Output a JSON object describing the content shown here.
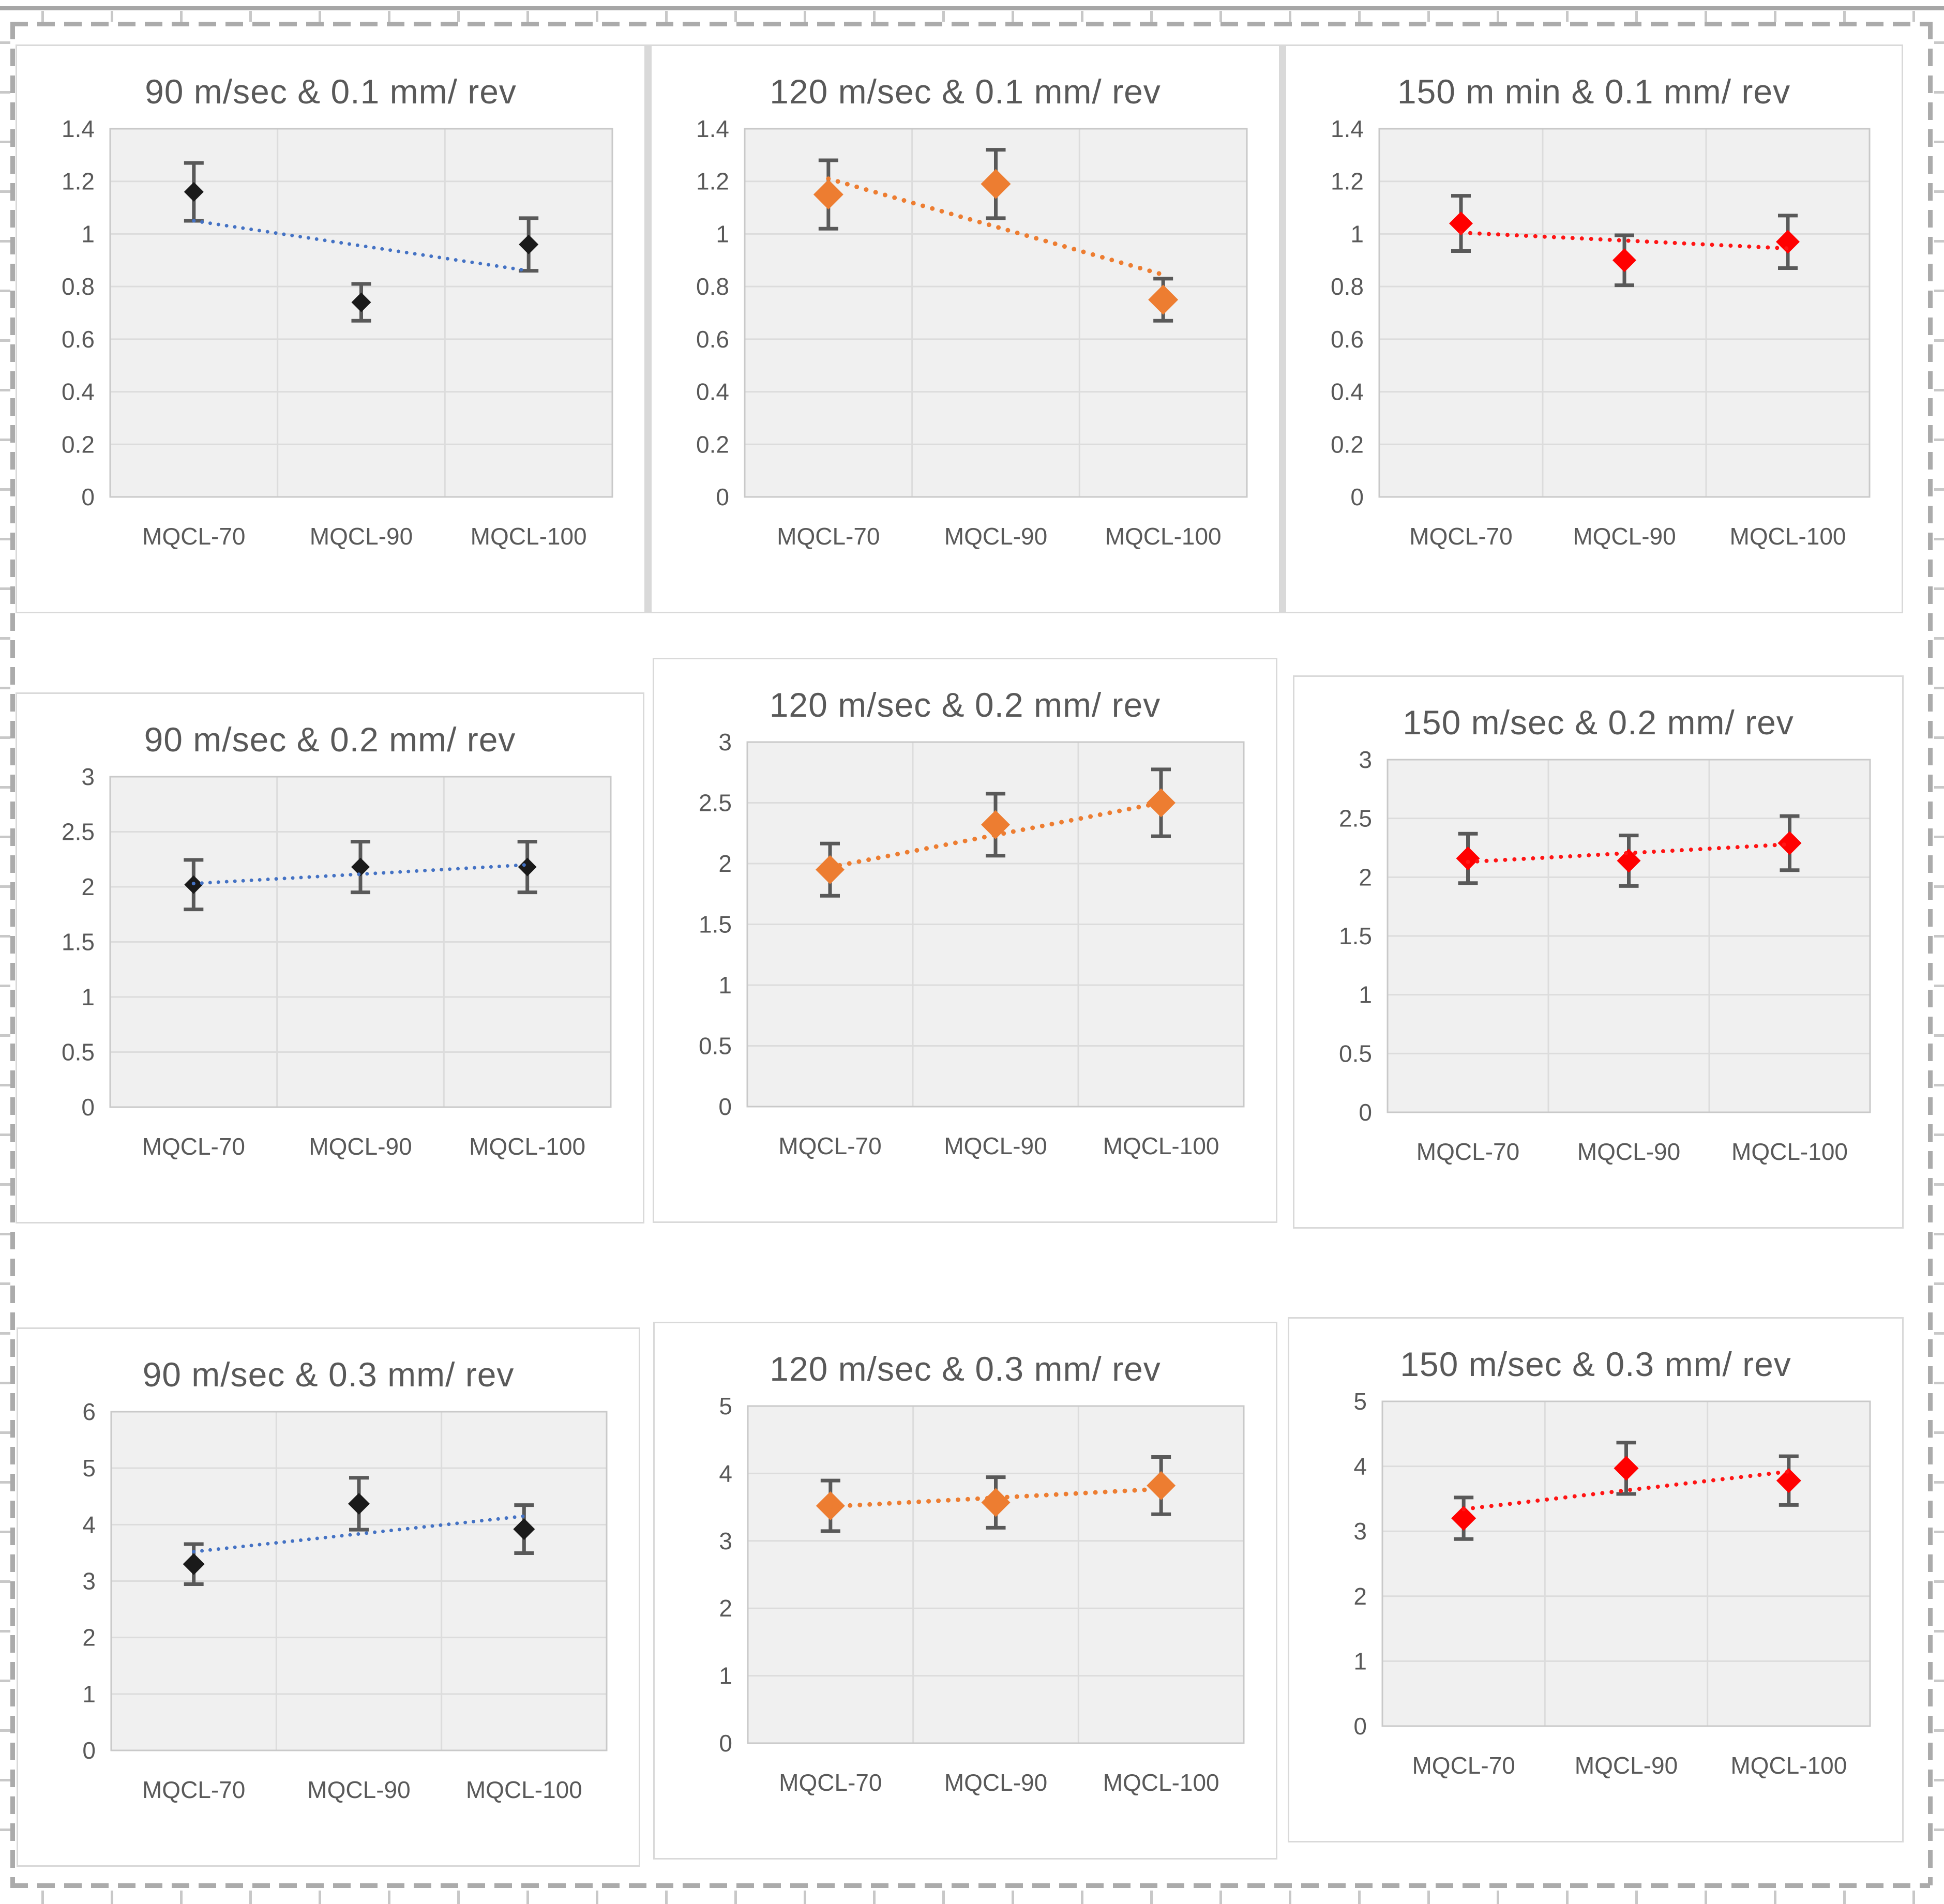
{
  "figure": {
    "description": "3x3 grid of Excel-style scatter charts with error bars and dotted trendlines",
    "categories": [
      "MQCL-70",
      "MQCL-90",
      "MQCL-100"
    ],
    "marquee_color": "#ababab"
  },
  "style": {
    "plot_fill": "#f0f0f0",
    "grid_color": "#dcdcdc",
    "plot_border": "#c9c9c9",
    "axis_text_color": "#595959",
    "title_color": "#595959",
    "error_color": "#595959",
    "panel_border": "#d9d9d9",
    "accent_blue": "#4472C4",
    "accent_orange": "#ED7D31",
    "accent_red": "#FF0000"
  },
  "chart_data": [
    {
      "type": "scatter",
      "title": "90 m/sec & 0.1 mm/ rev",
      "categories": [
        "MQCL-70",
        "MQCL-90",
        "MQCL-100"
      ],
      "values": [
        1.16,
        0.74,
        0.96
      ],
      "errors": [
        0.11,
        0.07,
        0.1
      ],
      "trendline": [
        1.05,
        0.86
      ],
      "ylim": [
        0,
        1.4
      ],
      "yticks": [
        "0",
        "0.2",
        "0.4",
        "0.6",
        "0.8",
        "1",
        "1.2",
        "1.4"
      ],
      "legend": "none",
      "grid": "on",
      "marker_color": "#1a1a1a",
      "trend_color": "#4472C4",
      "marker_size": 19,
      "dot_size": 7,
      "dot_gap": 16
    },
    {
      "type": "scatter",
      "title": "120 m/sec & 0.1 mm/ rev",
      "categories": [
        "MQCL-70",
        "MQCL-90",
        "MQCL-100"
      ],
      "values": [
        1.15,
        1.19,
        0.75
      ],
      "errors": [
        0.13,
        0.13,
        0.08
      ],
      "trendline": [
        1.21,
        0.845
      ],
      "ylim": [
        0,
        1.4
      ],
      "yticks": [
        "0",
        "0.2",
        "0.4",
        "0.6",
        "0.8",
        "1",
        "1.2",
        "1.4"
      ],
      "legend": "none",
      "grid": "on",
      "marker_color": "#ED7D31",
      "trend_color": "#ED7D31",
      "marker_size": 29,
      "dot_size": 9,
      "dot_gap": 19
    },
    {
      "type": "scatter",
      "title": "150 m min & 0.1 mm/ rev",
      "categories": [
        "MQCL-70",
        "MQCL-90",
        "MQCL-100"
      ],
      "values": [
        1.04,
        0.9,
        0.97
      ],
      "errors": [
        0.105,
        0.095,
        0.1
      ],
      "trendline": [
        1.005,
        0.945
      ],
      "ylim": [
        0,
        1.4
      ],
      "yticks": [
        "0",
        "0.2",
        "0.4",
        "0.6",
        "0.8",
        "1",
        "1.2",
        "1.4"
      ],
      "legend": "none",
      "grid": "on",
      "marker_color": "#FF0000",
      "trend_color": "#FF1414",
      "marker_size": 23,
      "dot_size": 8,
      "dot_gap": 18
    },
    {
      "type": "scatter",
      "title": "90 m/sec & 0.2 mm/ rev",
      "categories": [
        "MQCL-70",
        "MQCL-90",
        "MQCL-100"
      ],
      "values": [
        2.02,
        2.18,
        2.18
      ],
      "errors": [
        0.225,
        0.23,
        0.23
      ],
      "trendline": [
        2.03,
        2.2
      ],
      "ylim": [
        0,
        3
      ],
      "yticks": [
        "0",
        "0.5",
        "1",
        "1.5",
        "2",
        "2.5",
        "3"
      ],
      "legend": "none",
      "grid": "on",
      "marker_color": "#1a1a1a",
      "trend_color": "#4472C4",
      "marker_size": 18,
      "dot_size": 7,
      "dot_gap": 16
    },
    {
      "type": "scatter",
      "title": "120 m/sec & 0.2 mm/ rev",
      "categories": [
        "MQCL-70",
        "MQCL-90",
        "MQCL-100"
      ],
      "values": [
        1.95,
        2.32,
        2.5
      ],
      "errors": [
        0.215,
        0.255,
        0.275
      ],
      "trendline": [
        1.97,
        2.5
      ],
      "ylim": [
        0,
        3
      ],
      "yticks": [
        "0",
        "0.5",
        "1",
        "1.5",
        "2",
        "2.5",
        "3"
      ],
      "legend": "none",
      "grid": "on",
      "marker_color": "#ED7D31",
      "trend_color": "#ED7D31",
      "marker_size": 28,
      "dot_size": 9,
      "dot_gap": 19
    },
    {
      "type": "scatter",
      "title": "150 m/sec & 0.2 mm/ rev",
      "categories": [
        "MQCL-70",
        "MQCL-90",
        "MQCL-100"
      ],
      "values": [
        2.16,
        2.14,
        2.29
      ],
      "errors": [
        0.21,
        0.215,
        0.23
      ],
      "trendline": [
        2.13,
        2.28
      ],
      "ylim": [
        0,
        3
      ],
      "yticks": [
        "0",
        "0.5",
        "1",
        "1.5",
        "2",
        "2.5",
        "3"
      ],
      "legend": "none",
      "grid": "on",
      "marker_color": "#FF0000",
      "trend_color": "#FF1414",
      "marker_size": 23,
      "dot_size": 8,
      "dot_gap": 18
    },
    {
      "type": "scatter",
      "title": "90 m/sec & 0.3 mm/ rev",
      "categories": [
        "MQCL-70",
        "MQCL-90",
        "MQCL-100"
      ],
      "values": [
        3.3,
        4.37,
        3.92
      ],
      "errors": [
        0.355,
        0.46,
        0.425
      ],
      "trendline": [
        3.52,
        4.15
      ],
      "ylim": [
        0,
        6
      ],
      "yticks": [
        "0",
        "1",
        "2",
        "3",
        "4",
        "5",
        "6"
      ],
      "legend": "none",
      "grid": "on",
      "marker_color": "#1a1a1a",
      "trend_color": "#4472C4",
      "marker_size": 21,
      "dot_size": 7,
      "dot_gap": 16
    },
    {
      "type": "scatter",
      "title": "120 m/sec & 0.3 mm/ rev",
      "categories": [
        "MQCL-70",
        "MQCL-90",
        "MQCL-100"
      ],
      "values": [
        3.52,
        3.57,
        3.82
      ],
      "errors": [
        0.375,
        0.375,
        0.425
      ],
      "trendline": [
        3.51,
        3.77
      ],
      "ylim": [
        0,
        5
      ],
      "yticks": [
        "0",
        "1",
        "2",
        "3",
        "4",
        "5"
      ],
      "legend": "none",
      "grid": "on",
      "marker_color": "#ED7D31",
      "trend_color": "#ED7D31",
      "marker_size": 28,
      "dot_size": 9,
      "dot_gap": 19
    },
    {
      "type": "scatter",
      "title": "150 m/sec & 0.3 mm/ rev",
      "categories": [
        "MQCL-70",
        "MQCL-90",
        "MQCL-100"
      ],
      "values": [
        3.2,
        3.97,
        3.78
      ],
      "errors": [
        0.32,
        0.395,
        0.375
      ],
      "trendline": [
        3.34,
        3.92
      ],
      "ylim": [
        0,
        5
      ],
      "yticks": [
        "0",
        "1",
        "2",
        "3",
        "4",
        "5"
      ],
      "legend": "none",
      "grid": "on",
      "marker_color": "#FF0000",
      "trend_color": "#FF1414",
      "marker_size": 24,
      "dot_size": 8,
      "dot_gap": 18
    }
  ]
}
